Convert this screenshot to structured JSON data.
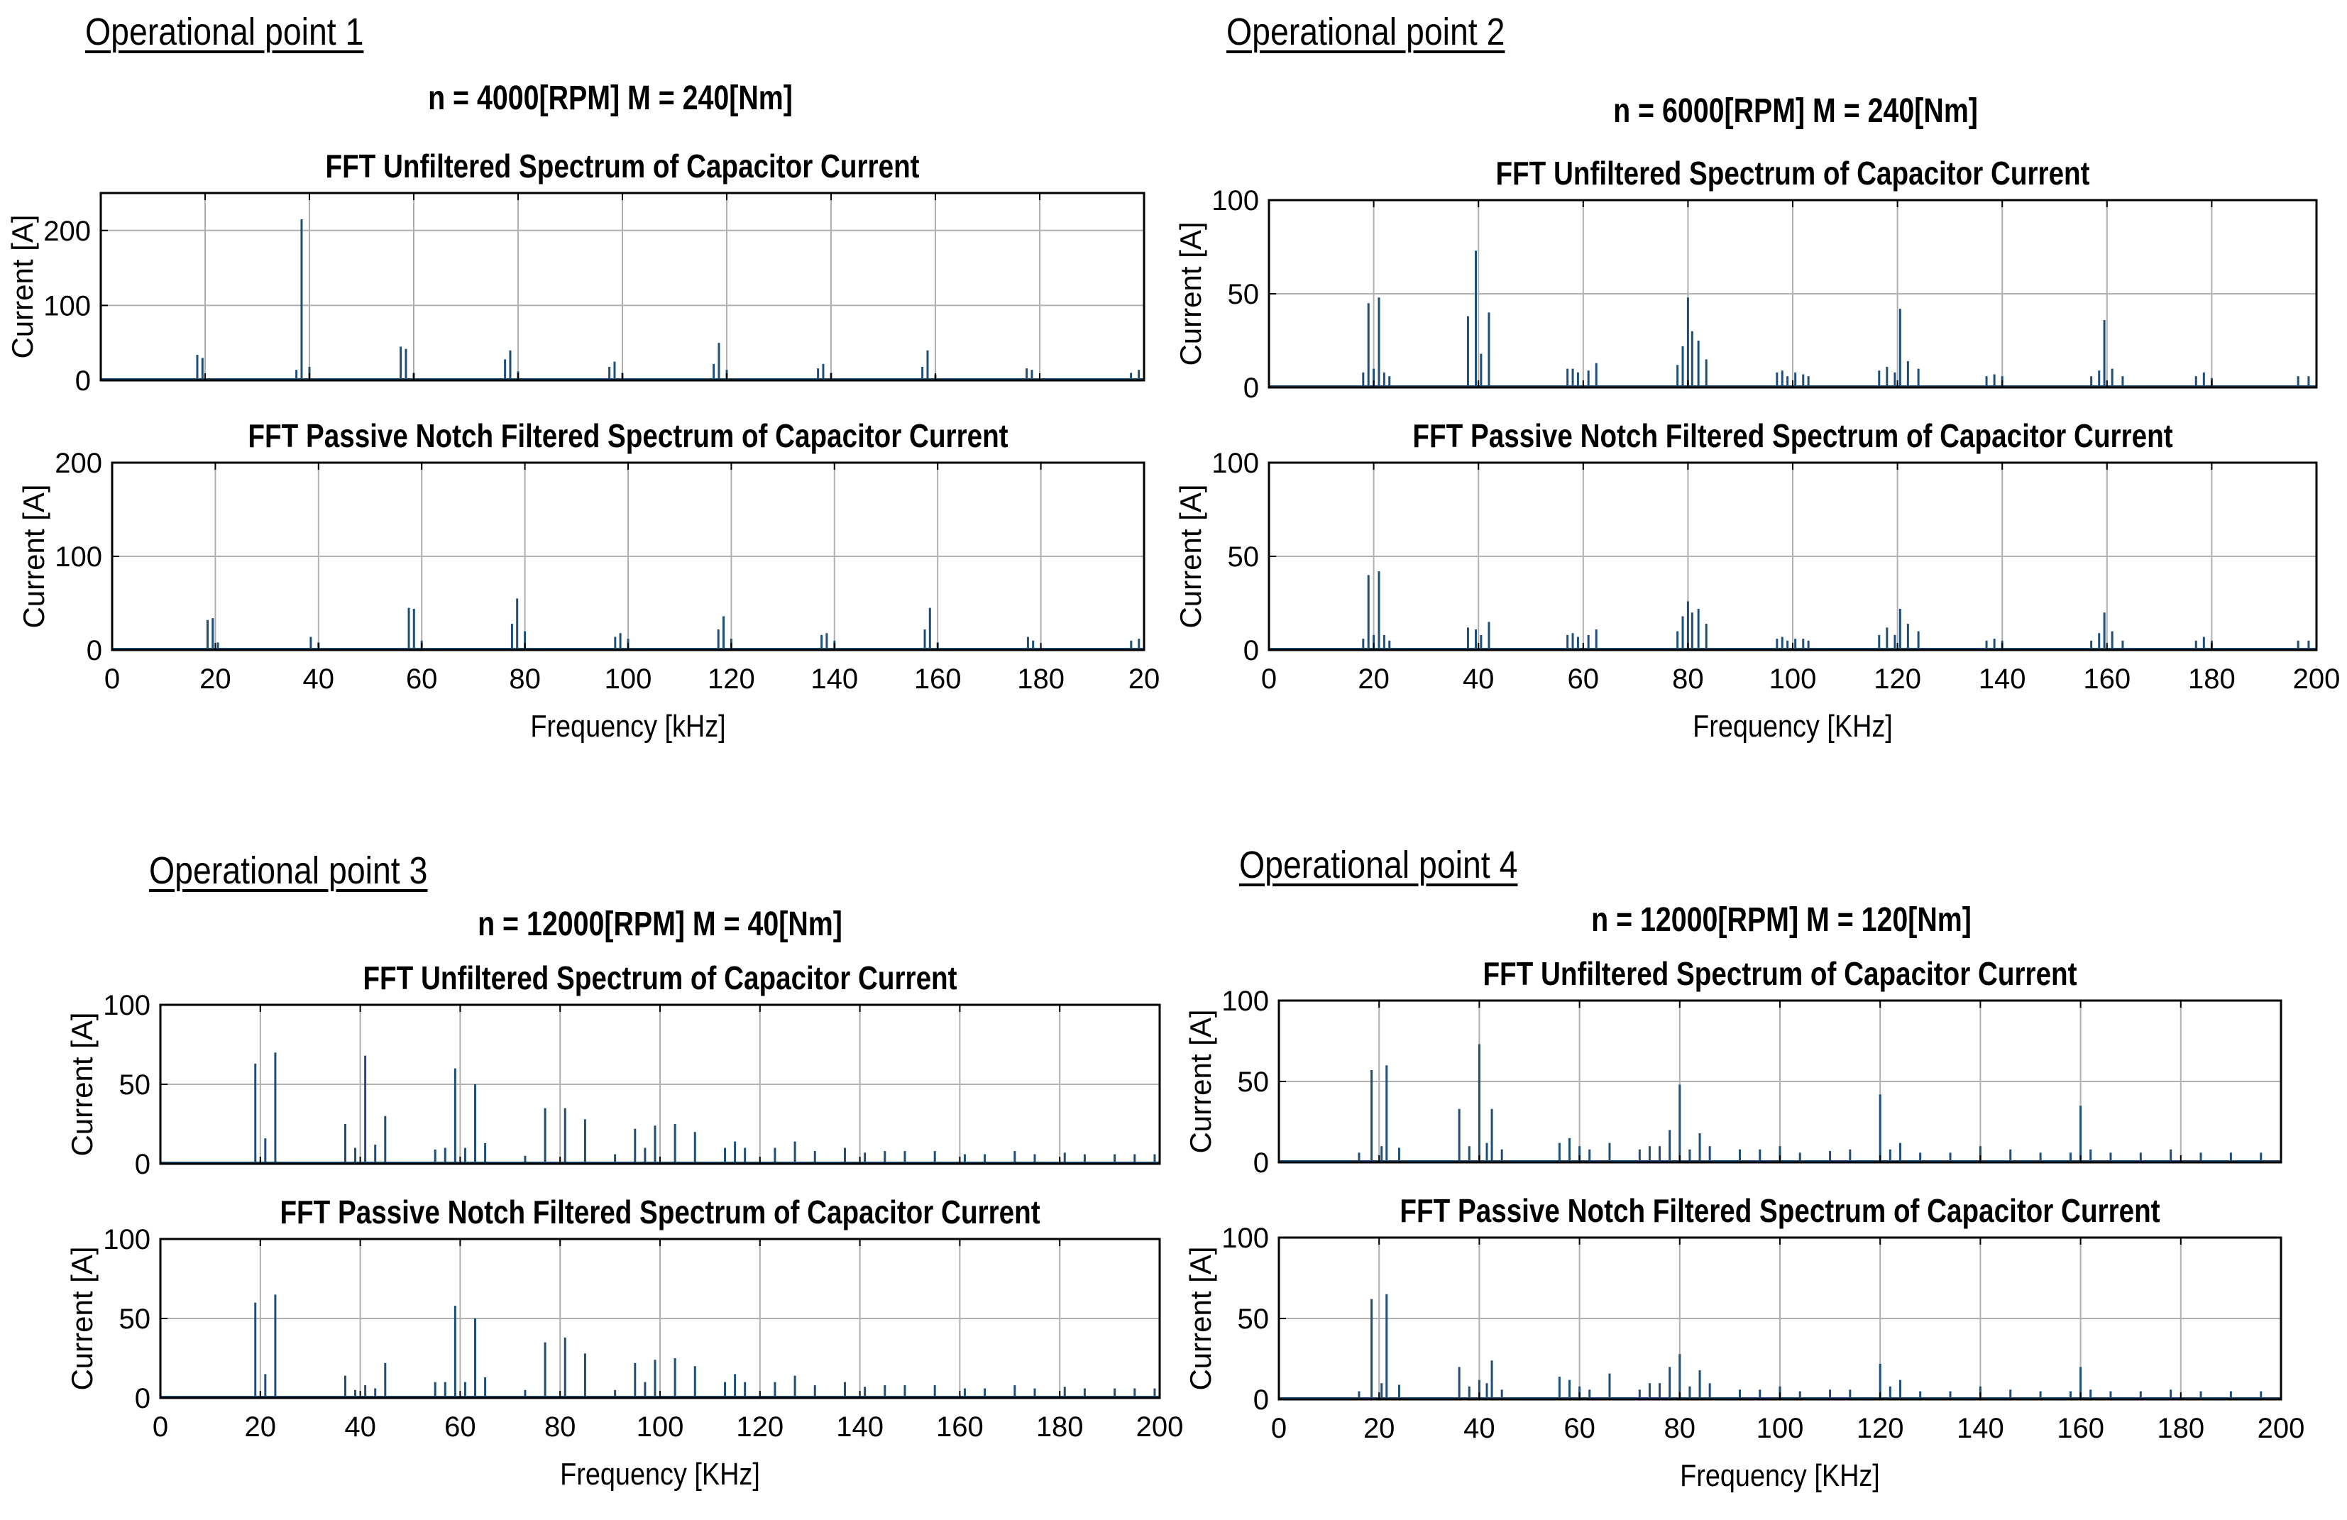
{
  "figure": {
    "panels": [
      {
        "label": "Operational point 1",
        "condition": "n = 4000[RPM] M = 240[Nm]"
      },
      {
        "label": "Operational point 2",
        "condition": "n = 6000[RPM] M = 240[Nm]"
      },
      {
        "label": "Operational point 3",
        "condition": "n = 12000[RPM] M = 40[Nm]"
      },
      {
        "label": "Operational point 4",
        "condition": "n = 12000[RPM] M = 120[Nm]"
      }
    ]
  },
  "colors": {
    "bar": "#1f4e79",
    "grid": "#b0b0b0",
    "axis": "#000000",
    "background": "#ffffff"
  },
  "chart_data": [
    {
      "panel": 1,
      "plot": "unfiltered",
      "type": "bar",
      "title": "FFT Unfiltered Spectrum of Capacitor Current",
      "ylabel": "Current [A]",
      "xlabel": "",
      "xlim": [
        0,
        200
      ],
      "ylim": [
        0,
        250
      ],
      "yticks": [
        0,
        100,
        200
      ],
      "xtick_labels": [],
      "x": [
        18.5,
        19.5,
        37.5,
        38.5,
        40,
        57.5,
        58.5,
        60,
        77.5,
        78.5,
        80,
        97.5,
        98.5,
        100,
        117.5,
        118.5,
        120,
        137.5,
        138.5,
        140,
        157.5,
        158.5,
        160,
        177.5,
        178.5,
        197.5,
        199
      ],
      "y": [
        34,
        30,
        14,
        215,
        18,
        45,
        42,
        10,
        28,
        40,
        12,
        18,
        25,
        10,
        22,
        50,
        14,
        16,
        22,
        10,
        18,
        40,
        8,
        16,
        14,
        10,
        14
      ]
    },
    {
      "panel": 1,
      "plot": "filtered",
      "type": "bar",
      "title": "FFT Passive Notch Filtered Spectrum of Capacitor Current",
      "ylabel": "Current [A]",
      "xlabel": "Frequency [kHz]",
      "xlim": [
        0,
        200
      ],
      "ylim": [
        0,
        200
      ],
      "yticks": [
        0,
        100,
        200
      ],
      "xtick_labels": [
        "0",
        "20",
        "40",
        "60",
        "80",
        "100",
        "120",
        "140",
        "160",
        "180",
        "20"
      ],
      "x": [
        18.5,
        19.5,
        20.5,
        38.5,
        40,
        57.5,
        58.5,
        60,
        77.5,
        78.5,
        80,
        97.5,
        98.5,
        100,
        117.5,
        118.5,
        120,
        137.5,
        138.5,
        140,
        157.5,
        158.5,
        160,
        177.5,
        178.5,
        197.5,
        199
      ],
      "y": [
        32,
        34,
        8,
        14,
        8,
        45,
        44,
        10,
        28,
        55,
        20,
        14,
        18,
        12,
        22,
        36,
        12,
        16,
        18,
        10,
        22,
        45,
        8,
        14,
        10,
        10,
        12
      ]
    },
    {
      "panel": 2,
      "plot": "unfiltered",
      "type": "bar",
      "title": "FFT Unfiltered Spectrum of Capacitor Current",
      "ylabel": "Current [A]",
      "xlabel": "",
      "xlim": [
        0,
        200
      ],
      "ylim": [
        0,
        100
      ],
      "yticks": [
        0,
        50,
        100
      ],
      "xtick_labels": [],
      "x": [
        18,
        19,
        20,
        21,
        22,
        23,
        38,
        39.5,
        40.5,
        42,
        57,
        58,
        59,
        61,
        62.5,
        78,
        79,
        80,
        80.8,
        82,
        83.5,
        97,
        98,
        99,
        100.5,
        102,
        103,
        116.5,
        118,
        119.5,
        120.5,
        122,
        124,
        137,
        138.5,
        140,
        157,
        158.5,
        159.5,
        161,
        163,
        177,
        178.5,
        180,
        196.5,
        198.5
      ],
      "y": [
        8,
        45,
        10,
        48,
        8,
        6,
        38,
        73,
        18,
        40,
        10,
        10,
        8,
        9,
        13,
        12,
        22,
        48,
        30,
        25,
        15,
        8,
        9,
        6,
        8,
        7,
        6,
        9,
        11,
        8,
        42,
        14,
        10,
        6,
        7,
        6,
        6,
        9,
        36,
        10,
        6,
        6,
        8,
        5,
        6,
        6
      ]
    },
    {
      "panel": 2,
      "plot": "filtered",
      "type": "bar",
      "title": "FFT Passive Notch Filtered Spectrum of Capacitor Current",
      "ylabel": "Current [A]",
      "xlabel": "Frequency [KHz]",
      "xlim": [
        0,
        200
      ],
      "ylim": [
        0,
        100
      ],
      "yticks": [
        0,
        50,
        100
      ],
      "xtick_labels": [
        "0",
        "20",
        "40",
        "60",
        "80",
        "100",
        "120",
        "140",
        "160",
        "180",
        "200"
      ],
      "x": [
        18,
        19,
        20,
        21,
        22,
        23,
        38,
        39.5,
        40.5,
        42,
        57,
        58,
        59,
        61,
        62.5,
        78,
        79,
        80,
        80.8,
        82,
        83.5,
        97,
        98,
        99,
        100.5,
        102,
        103,
        116.5,
        118,
        119.5,
        120.5,
        122,
        124,
        137,
        138.5,
        140,
        157,
        158.5,
        159.5,
        161,
        163,
        177,
        178.5,
        180,
        196.5,
        198.5
      ],
      "y": [
        6,
        40,
        8,
        42,
        8,
        5,
        12,
        11,
        8,
        15,
        8,
        9,
        7,
        8,
        11,
        10,
        18,
        26,
        20,
        22,
        14,
        6,
        7,
        5,
        6,
        6,
        5,
        8,
        12,
        8,
        22,
        14,
        10,
        5,
        6,
        5,
        5,
        9,
        20,
        10,
        5,
        5,
        7,
        5,
        5,
        5
      ]
    },
    {
      "panel": 3,
      "plot": "unfiltered",
      "type": "bar",
      "title": "FFT Unfiltered Spectrum of Capacitor Current",
      "ylabel": "Current [A]",
      "xlabel": "",
      "xlim": [
        0,
        200
      ],
      "ylim": [
        0,
        100
      ],
      "yticks": [
        0,
        50,
        100
      ],
      "xtick_labels": [],
      "x": [
        19,
        21,
        23,
        37,
        39,
        41,
        43,
        45,
        55,
        57,
        59,
        61,
        63,
        65,
        73,
        77,
        81,
        85,
        91,
        95,
        97,
        99,
        103,
        107,
        113,
        115,
        117,
        123,
        127,
        131,
        137,
        141,
        145,
        149,
        155,
        161,
        165,
        171,
        175,
        181,
        185,
        191,
        195,
        199
      ],
      "y": [
        63,
        16,
        70,
        25,
        10,
        68,
        12,
        30,
        9,
        10,
        60,
        10,
        50,
        13,
        5,
        35,
        35,
        28,
        6,
        22,
        10,
        24,
        25,
        20,
        10,
        14,
        10,
        10,
        14,
        8,
        10,
        7,
        8,
        8,
        8,
        6,
        6,
        8,
        6,
        7,
        6,
        6,
        6,
        6
      ]
    },
    {
      "panel": 3,
      "plot": "filtered",
      "type": "bar",
      "title": "FFT Passive Notch Filtered Spectrum of Capacitor Current",
      "ylabel": "Current [A]",
      "xlabel": "Frequency [KHz]",
      "xlim": [
        0,
        200
      ],
      "ylim": [
        0,
        100
      ],
      "yticks": [
        0,
        50,
        100
      ],
      "xtick_labels": [
        "0",
        "20",
        "40",
        "60",
        "80",
        "100",
        "120",
        "140",
        "160",
        "180",
        "200"
      ],
      "x": [
        19,
        21,
        23,
        37,
        39,
        41,
        43,
        45,
        55,
        57,
        59,
        61,
        63,
        65,
        73,
        77,
        81,
        85,
        91,
        95,
        97,
        99,
        103,
        107,
        113,
        115,
        117,
        123,
        127,
        131,
        137,
        141,
        145,
        149,
        155,
        161,
        165,
        171,
        175,
        181,
        185,
        191,
        195,
        199
      ],
      "y": [
        60,
        15,
        65,
        14,
        5,
        8,
        6,
        22,
        10,
        10,
        58,
        10,
        50,
        13,
        5,
        35,
        38,
        28,
        5,
        22,
        10,
        24,
        25,
        20,
        10,
        15,
        10,
        10,
        14,
        8,
        10,
        7,
        8,
        8,
        8,
        6,
        6,
        8,
        6,
        7,
        6,
        6,
        6,
        6
      ]
    },
    {
      "panel": 4,
      "plot": "unfiltered",
      "type": "bar",
      "title": "FFT Unfiltered Spectrum of Capacitor Current",
      "ylabel": "Current [A]",
      "xlabel": "",
      "xlim": [
        0,
        200
      ],
      "ylim": [
        0,
        100
      ],
      "yticks": [
        0,
        50,
        100
      ],
      "xtick_labels": [],
      "x": [
        16,
        18.5,
        20.5,
        21.5,
        24,
        36,
        38,
        40,
        41.5,
        42.5,
        44.5,
        56,
        58,
        60,
        62,
        66,
        72,
        74,
        76,
        78,
        80,
        82,
        84,
        86,
        92,
        96,
        100,
        104,
        110,
        114,
        120,
        122,
        124,
        128,
        134,
        140,
        146,
        152,
        158,
        160,
        162,
        166,
        172,
        178,
        184,
        190,
        196
      ],
      "y": [
        6,
        57,
        10,
        60,
        9,
        33,
        10,
        73,
        12,
        33,
        8,
        12,
        15,
        10,
        8,
        12,
        8,
        10,
        10,
        20,
        48,
        8,
        18,
        10,
        8,
        8,
        10,
        6,
        7,
        8,
        42,
        8,
        12,
        6,
        6,
        10,
        8,
        6,
        6,
        35,
        8,
        6,
        6,
        8,
        6,
        6,
        6
      ]
    },
    {
      "panel": 4,
      "plot": "filtered",
      "type": "bar",
      "title": "FFT Passive Notch Filtered Spectrum of Capacitor Current",
      "ylabel": "Current [A]",
      "xlabel": "Frequency [KHz]",
      "xlim": [
        0,
        200
      ],
      "ylim": [
        0,
        100
      ],
      "yticks": [
        0,
        50,
        100
      ],
      "xtick_labels": [
        "0",
        "20",
        "40",
        "60",
        "80",
        "100",
        "120",
        "140",
        "160",
        "180",
        "200"
      ],
      "x": [
        16,
        18.5,
        20.5,
        21.5,
        24,
        36,
        38,
        40,
        41.5,
        42.5,
        44.5,
        56,
        58,
        60,
        62,
        66,
        72,
        74,
        76,
        78,
        80,
        82,
        84,
        86,
        92,
        96,
        100,
        104,
        110,
        114,
        120,
        122,
        124,
        128,
        134,
        140,
        146,
        152,
        158,
        160,
        162,
        166,
        172,
        178,
        184,
        190,
        196
      ],
      "y": [
        5,
        62,
        10,
        65,
        9,
        20,
        8,
        12,
        10,
        24,
        6,
        14,
        12,
        8,
        6,
        16,
        6,
        10,
        10,
        20,
        28,
        8,
        18,
        10,
        6,
        6,
        8,
        5,
        6,
        6,
        22,
        8,
        12,
        5,
        5,
        8,
        6,
        5,
        5,
        20,
        6,
        5,
        5,
        6,
        5,
        5,
        5
      ]
    }
  ]
}
